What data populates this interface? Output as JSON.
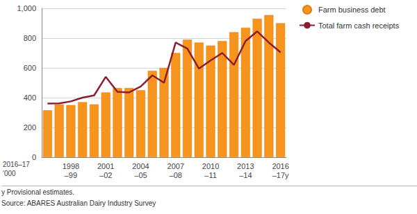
{
  "chart_data": {
    "type": "bar",
    "y_label": "2016–17\n'000",
    "categories": [
      null,
      null,
      "1998\n–99",
      null,
      null,
      "2001\n–02",
      null,
      null,
      "2004\n–05",
      null,
      null,
      "2007\n–08",
      null,
      null,
      "2010\n–11",
      null,
      null,
      "2013\n–14",
      null,
      null,
      "2016\n–17y"
    ],
    "series": [
      {
        "name": "Farm business debt",
        "type": "bar",
        "color": "#f7941d",
        "values": [
          315,
          355,
          350,
          370,
          355,
          435,
          465,
          465,
          450,
          580,
          600,
          700,
          790,
          770,
          750,
          780,
          840,
          870,
          930,
          955,
          900
        ]
      },
      {
        "name": "Total farm cash receipts",
        "type": "line",
        "color": "#8c1d2f",
        "values": [
          360,
          362,
          375,
          400,
          415,
          540,
          440,
          435,
          475,
          550,
          500,
          770,
          730,
          595,
          650,
          700,
          620,
          780,
          845,
          770,
          705
        ]
      }
    ],
    "ylim": [
      0,
      1000
    ],
    "yticks": [
      0,
      200,
      400,
      600,
      800,
      {
        "value": 1000,
        "label": "1,000"
      }
    ],
    "grid": true,
    "legend": "top-right",
    "annotations": [
      "y Provisional estimates.",
      "Source: ABARES Australian Dairy Industry Survey"
    ]
  }
}
